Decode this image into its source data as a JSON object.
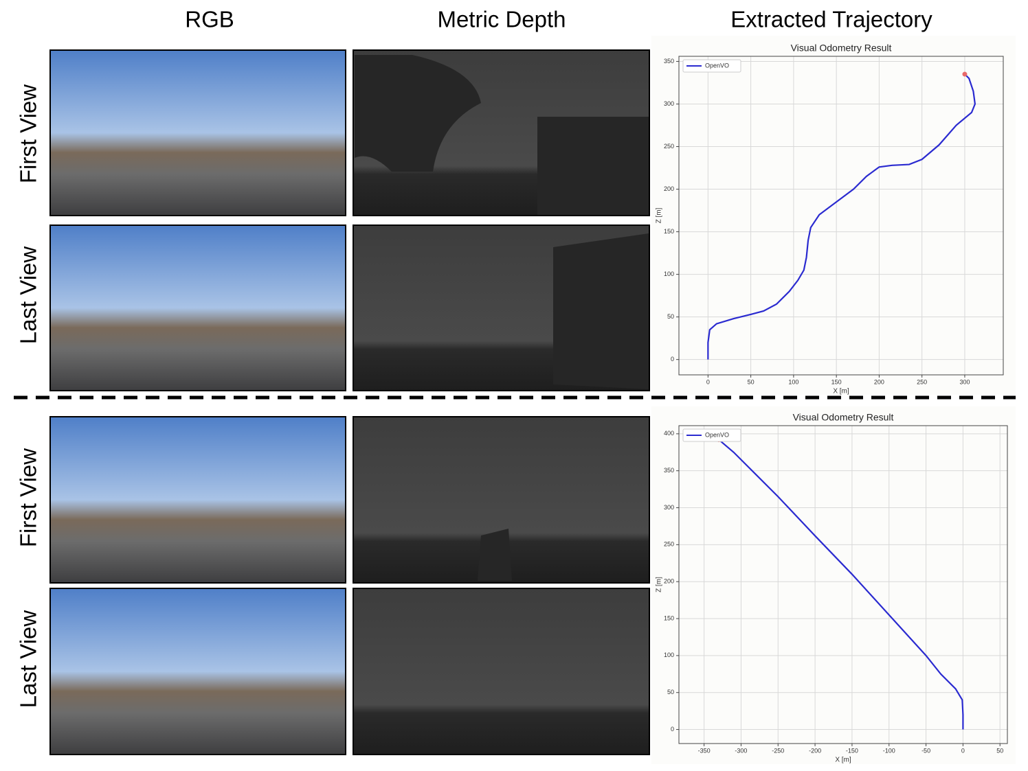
{
  "headers": [
    "RGB",
    "Metric Depth",
    "Extracted Trajectory"
  ],
  "row_labels": [
    "First View",
    "Last View",
    "First View",
    "Last View"
  ],
  "chart_data": [
    {
      "type": "line",
      "title": "Visual Odometry Result",
      "x_label": "X [m]",
      "y_label": "Z [m]",
      "x": [
        0,
        0,
        2,
        10,
        30,
        50,
        65,
        80,
        95,
        105,
        112,
        115,
        117,
        120,
        130,
        150,
        170,
        185,
        200,
        215,
        235,
        250,
        270,
        290,
        308,
        312,
        310,
        305,
        300
      ],
      "series": [
        {
          "name": "OpenVO",
          "color": "#2a2ad0",
          "values": [
            0,
            20,
            35,
            42,
            48,
            53,
            57,
            65,
            80,
            93,
            105,
            120,
            140,
            155,
            170,
            185,
            200,
            215,
            226,
            228,
            229,
            235,
            252,
            275,
            290,
            300,
            315,
            330,
            335
          ]
        }
      ],
      "xlim": [
        -34,
        345
      ],
      "ylim": [
        -18,
        356
      ],
      "xticks": [
        0,
        50,
        100,
        150,
        200,
        250,
        300
      ],
      "yticks": [
        0,
        50,
        100,
        150,
        200,
        250,
        300,
        350
      ],
      "grid": true,
      "legend": "upper left"
    },
    {
      "type": "line",
      "title": "Visual Odometry Result",
      "x_label": "X [m]",
      "y_label": "Z [m]",
      "x": [
        0,
        0,
        -1,
        -10,
        -30,
        -50,
        -100,
        -150,
        -200,
        -250,
        -280,
        -310,
        -330
      ],
      "series": [
        {
          "name": "OpenVO",
          "color": "#2a2ad0",
          "values": [
            0,
            20,
            40,
            55,
            75,
            100,
            155,
            210,
            262,
            315,
            345,
            375,
            392
          ]
        }
      ],
      "xlim": [
        -384,
        60
      ],
      "ylim": [
        -19,
        411
      ],
      "xticks": [
        -350,
        -300,
        -250,
        -200,
        -150,
        -100,
        -50,
        0,
        50
      ],
      "yticks": [
        0,
        50,
        100,
        150,
        200,
        250,
        300,
        350,
        400
      ],
      "grid": true,
      "legend": "upper left"
    }
  ]
}
